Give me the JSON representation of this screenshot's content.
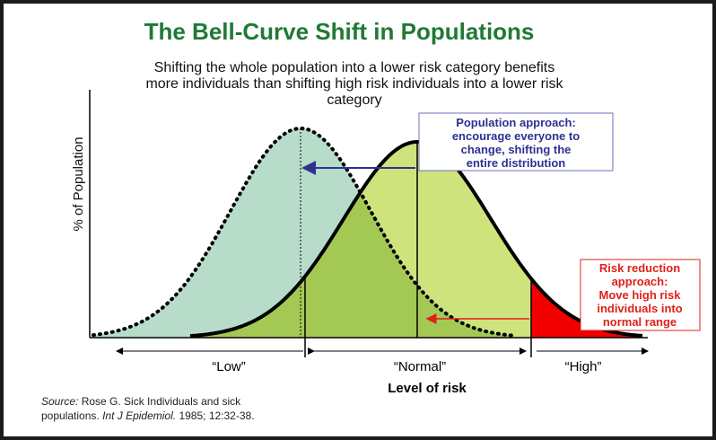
{
  "header": {
    "title": "The Bell-Curve Shift in Populations",
    "subtitle": [
      "Shifting the whole population into a lower risk category benefits",
      "more individuals than shifting high risk individuals into a lower risk",
      "category"
    ]
  },
  "axes": {
    "y_label": "% of Population",
    "x_label": "Level of risk"
  },
  "regions": [
    "“Low”",
    "“Normal”",
    "“High”"
  ],
  "callouts": {
    "population": [
      "Population approach:",
      "encourage everyone to",
      "change, shifting the",
      "entire distribution"
    ],
    "risk_reduction": [
      "Risk reduction",
      "approach:",
      "Move high risk",
      "individuals into",
      "normal range"
    ]
  },
  "source": {
    "label": "Source:",
    "line1": "Rose G. Sick Individuals and sick",
    "line2": "populations.",
    "journal": "Int J Epidemiol.",
    "citation": "1985; 12:32-38."
  }
}
